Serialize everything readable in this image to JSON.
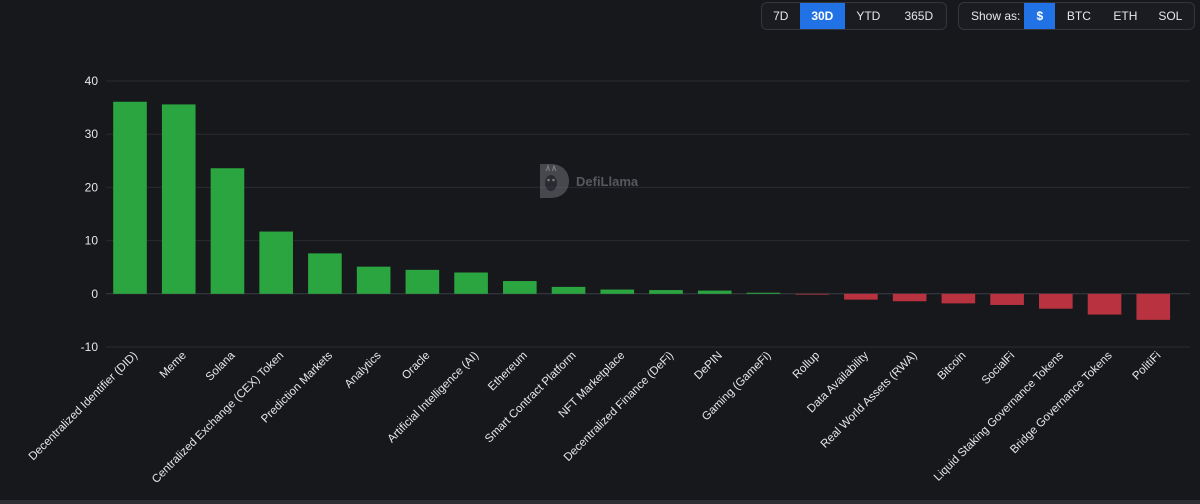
{
  "controls": {
    "period_options": [
      "7D",
      "30D",
      "YTD",
      "365D"
    ],
    "period_selected": "30D",
    "show_as_label": "Show as:",
    "denomination_options": [
      "$",
      "BTC",
      "ETH",
      "SOL"
    ],
    "denomination_selected": "$"
  },
  "watermark": {
    "text": "DefiLlama"
  },
  "colors": {
    "positive": "#2aa540",
    "negative": "#b8323f",
    "active_toggle": "#2172e5",
    "background": "#17181c"
  },
  "chart_data": {
    "type": "bar",
    "title": "",
    "xlabel": "",
    "ylabel": "",
    "ylim": [
      -10,
      40
    ],
    "yticks": [
      -10,
      0,
      10,
      20,
      30,
      40
    ],
    "grid": true,
    "categories": [
      "Decentralized Identifier (DID)",
      "Meme",
      "Solana",
      "Centralized Exchange (CEX) Token",
      "Prediction Markets",
      "Analytics",
      "Oracle",
      "Artificial Intelligence (AI)",
      "Ethereum",
      "Smart Contract Platform",
      "NFT Marketplace",
      "Decentralized Finance (DeFi)",
      "DePIN",
      "Gaming (GameFi)",
      "Rollup",
      "Data Availability",
      "Real World Assets (RWA)",
      "Bitcoin",
      "SocialFi",
      "Liquid Staking Governance Tokens",
      "Bridge Governance Tokens",
      "PolitiFi"
    ],
    "values": [
      36.1,
      35.6,
      23.6,
      11.7,
      7.6,
      5.1,
      4.5,
      4.0,
      2.4,
      1.3,
      0.8,
      0.7,
      0.6,
      0.2,
      -0.1,
      -1.1,
      -1.4,
      -1.8,
      -2.1,
      -2.8,
      -3.9,
      -4.9
    ]
  }
}
